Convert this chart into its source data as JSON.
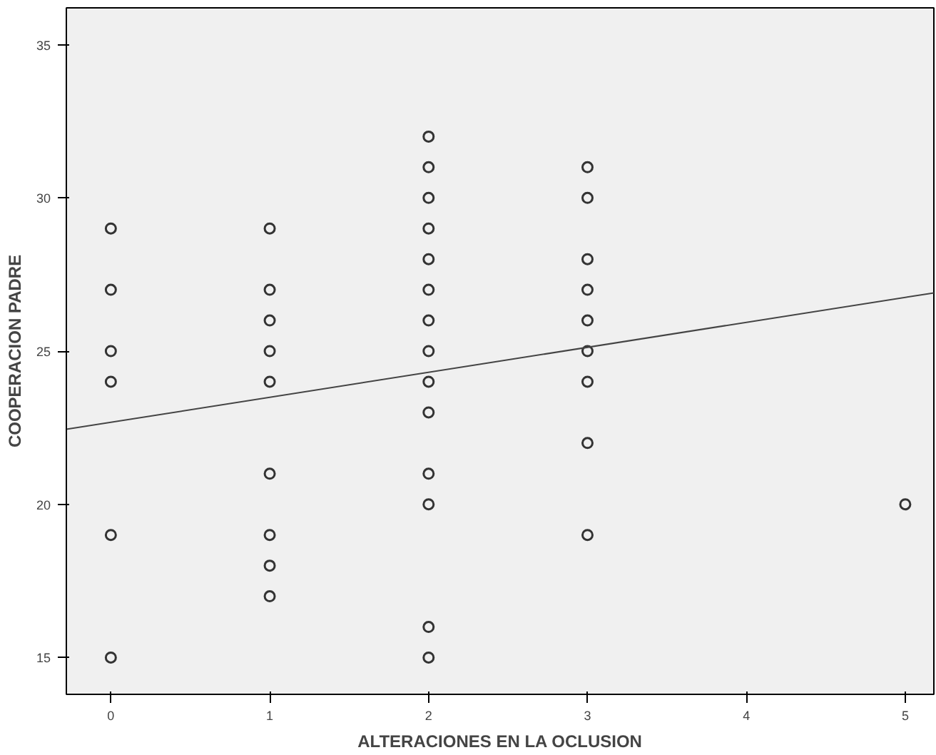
{
  "chart_data": {
    "type": "scatter",
    "xlabel": "ALTERACIONES EN LA OCLUSION",
    "ylabel": "COOPERACION PADRE",
    "xlim": [
      -0.28,
      5.18
    ],
    "ylim": [
      13.8,
      36.2
    ],
    "xticks": [
      0,
      1,
      2,
      3,
      4,
      5
    ],
    "yticks": [
      15,
      20,
      25,
      30,
      35
    ],
    "grid": false,
    "marker": "circle",
    "series": [
      {
        "color": "#333333",
        "x": [
          0,
          0,
          0,
          0,
          0,
          0,
          1,
          1,
          1,
          1,
          1,
          1,
          1,
          1,
          1,
          2,
          2,
          2,
          2,
          2,
          2,
          2,
          2,
          2,
          2,
          2,
          2,
          2,
          2,
          3,
          3,
          3,
          3,
          3,
          3,
          3,
          3,
          3,
          5
        ],
        "values": [
          29,
          27,
          25,
          24,
          19,
          15,
          29,
          27,
          26,
          25,
          24,
          21,
          19,
          18,
          17,
          32,
          31,
          30,
          29,
          28,
          27,
          26,
          25,
          24,
          23,
          21,
          20,
          16,
          15,
          31,
          30,
          28,
          27,
          26,
          25,
          24,
          22,
          19,
          20
        ]
      },
      {
        "type": "line",
        "color": "#444444",
        "marker": "none",
        "x": [
          -0.28,
          5.18
        ],
        "values": [
          22.45,
          26.9
        ]
      }
    ]
  }
}
